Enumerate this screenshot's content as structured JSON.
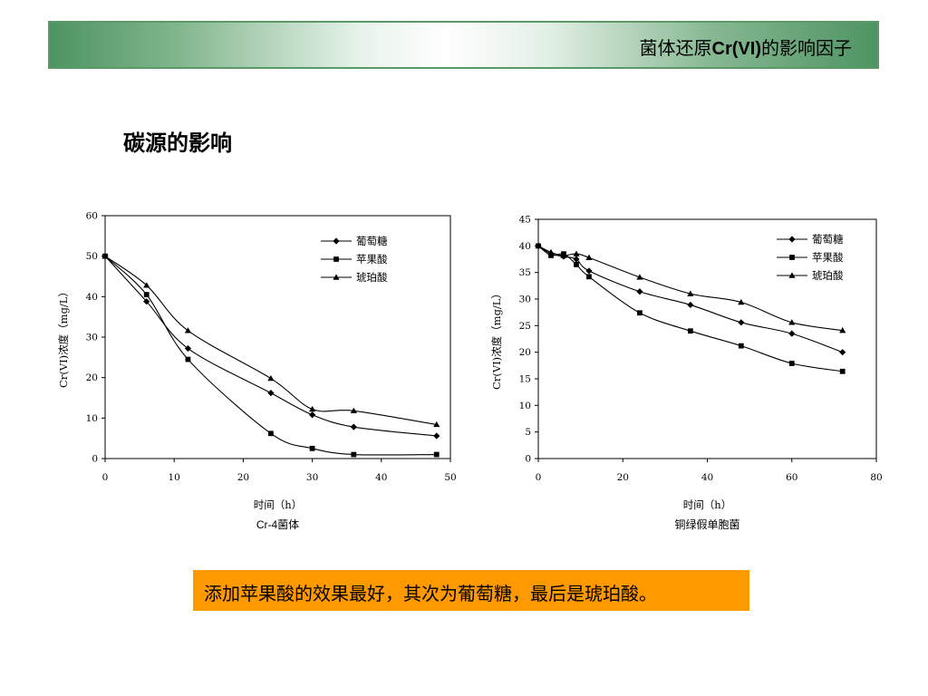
{
  "header": {
    "title_prefix": "菌体还原",
    "title_latin": "Cr(VI)",
    "title_suffix": "的影响因子"
  },
  "section_title": "碳源的影响",
  "callout_text": "添加苹果酸的效果最好，其次为葡萄糖，最后是琥珀酸。",
  "colors": {
    "banner_green": "#4e9463",
    "callout_orange": "#ff9900",
    "line": "#000000"
  },
  "chart_data": [
    {
      "type": "line",
      "caption": "Cr-4菌体",
      "xlabel": "时间（h）",
      "ylabel": "Cr(VI)浓度（mg/L）",
      "xlim": [
        0,
        50
      ],
      "ylim": [
        0,
        60
      ],
      "xticks": [
        0,
        10,
        20,
        30,
        40,
        50
      ],
      "yticks": [
        0,
        10,
        20,
        30,
        40,
        50,
        60
      ],
      "legend_position": "top-right",
      "series": [
        {
          "name": "葡萄糖",
          "marker": "diamond",
          "x": [
            0,
            6,
            12,
            24,
            30,
            36,
            48
          ],
          "values": [
            50,
            38.8,
            27.2,
            16.2,
            10.8,
            7.8,
            5.6
          ]
        },
        {
          "name": "苹果酸",
          "marker": "square",
          "x": [
            0,
            6,
            12,
            24,
            30,
            36,
            48
          ],
          "values": [
            50,
            40.5,
            24.5,
            6.2,
            2.5,
            1.0,
            1.0
          ]
        },
        {
          "name": "琥珀酸",
          "marker": "triangle",
          "x": [
            0,
            6,
            12,
            24,
            30,
            36,
            48
          ],
          "values": [
            50,
            42.8,
            31.6,
            19.8,
            12.2,
            11.8,
            8.4
          ]
        }
      ]
    },
    {
      "type": "line",
      "caption": "铜绿假单胞菌",
      "xlabel": "时间（h）",
      "ylabel": "Cr(VI)浓度（mg/L）",
      "xlim": [
        0,
        80
      ],
      "ylim": [
        0,
        45
      ],
      "xticks": [
        0,
        20,
        40,
        60,
        80
      ],
      "yticks": [
        0,
        5,
        10,
        15,
        20,
        25,
        30,
        35,
        40,
        45
      ],
      "legend_position": "top-right",
      "series": [
        {
          "name": "葡萄糖",
          "marker": "diamond",
          "x": [
            0,
            3,
            6,
            9,
            12,
            24,
            36,
            48,
            60,
            72
          ],
          "values": [
            40,
            38.5,
            38,
            37.5,
            35.3,
            31.4,
            28.9,
            25.6,
            23.5,
            20
          ]
        },
        {
          "name": "苹果酸",
          "marker": "square",
          "x": [
            0,
            3,
            6,
            9,
            12,
            24,
            36,
            48,
            60,
            72
          ],
          "values": [
            40,
            38.2,
            38.5,
            36.5,
            34.2,
            27.4,
            24,
            21.2,
            17.9,
            16.4
          ]
        },
        {
          "name": "琥珀酸",
          "marker": "triangle",
          "x": [
            0,
            3,
            6,
            9,
            12,
            24,
            36,
            48,
            60,
            72
          ],
          "values": [
            40,
            38.8,
            38.2,
            38.5,
            37.8,
            34.1,
            31,
            29.4,
            25.6,
            24.1
          ]
        }
      ]
    }
  ]
}
